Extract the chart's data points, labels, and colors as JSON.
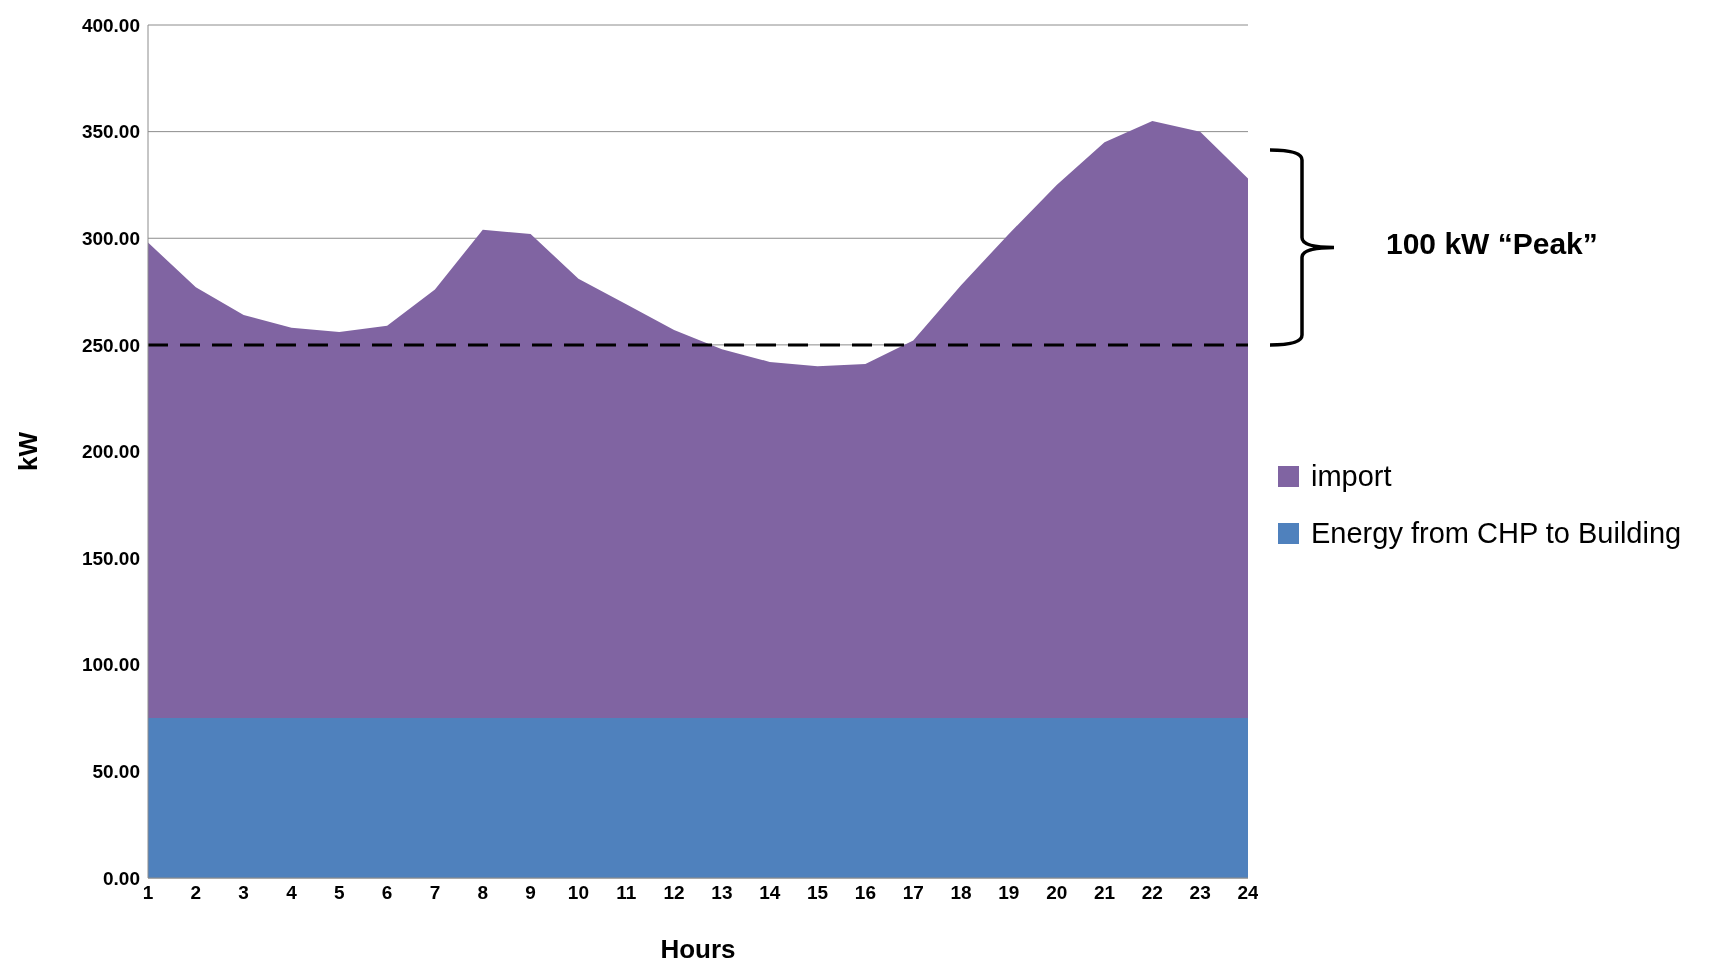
{
  "chart_data": {
    "type": "area",
    "stacked": true,
    "xlabel": "Hours",
    "ylabel": "kW",
    "x": [
      1,
      2,
      3,
      4,
      5,
      6,
      7,
      8,
      9,
      10,
      11,
      12,
      13,
      14,
      15,
      16,
      17,
      18,
      19,
      20,
      21,
      22,
      23,
      24
    ],
    "xlim": [
      1,
      24
    ],
    "xticks": [
      1,
      2,
      3,
      4,
      5,
      6,
      7,
      8,
      9,
      10,
      11,
      12,
      13,
      14,
      15,
      16,
      17,
      18,
      19,
      20,
      21,
      22,
      23,
      24
    ],
    "ylim": [
      0,
      400
    ],
    "yticks": [
      {
        "value": 0,
        "label": "0.00"
      },
      {
        "value": 50,
        "label": "50.00"
      },
      {
        "value": 100,
        "label": "100.00"
      },
      {
        "value": 150,
        "label": "150.00"
      },
      {
        "value": 200,
        "label": "200.00"
      },
      {
        "value": 250,
        "label": "250.00"
      },
      {
        "value": 300,
        "label": "300.00"
      },
      {
        "value": 350,
        "label": "350.00"
      },
      {
        "value": 400,
        "label": "400.00"
      }
    ],
    "series": [
      {
        "name": "Energy from CHP to Building",
        "color": "#4f81bd",
        "values": [
          75,
          75,
          75,
          75,
          75,
          75,
          75,
          75,
          75,
          75,
          75,
          75,
          75,
          75,
          75,
          75,
          75,
          75,
          75,
          75,
          75,
          75,
          75,
          75
        ]
      },
      {
        "name": "import",
        "color": "#8064a2",
        "values": [
          223,
          202,
          189,
          183,
          181,
          184,
          201,
          229,
          227,
          206,
          194,
          182,
          173,
          167,
          165,
          166,
          177,
          203,
          227,
          250,
          270,
          280,
          275,
          253
        ]
      }
    ],
    "ref_lines": [
      {
        "axis": "y",
        "value": 250,
        "color": "#000000",
        "line_style": "dashed"
      }
    ],
    "annotations": [
      "100 kW “Peak”"
    ],
    "grid": "y",
    "legend": "right"
  }
}
